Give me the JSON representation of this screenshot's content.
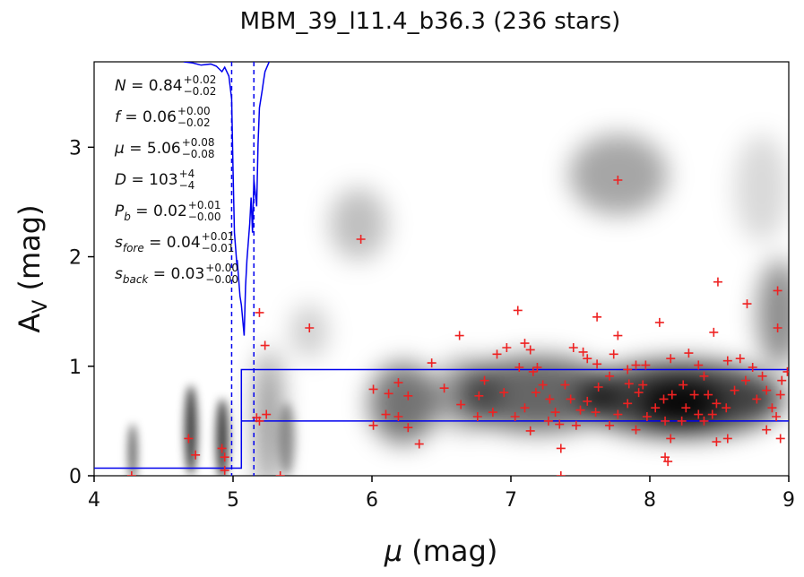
{
  "chart_data": {
    "type": "scatter",
    "title": "MBM_39_l11.4_b36.3 (236 stars)",
    "xlabel": [
      "μ",
      " (mag)"
    ],
    "ylabel": [
      "A",
      "V",
      " (mag)"
    ],
    "xlim": [
      4,
      9
    ],
    "ylim": [
      0,
      3.78
    ],
    "xticks": [
      4,
      5,
      6,
      7,
      8,
      9
    ],
    "yticks": [
      0,
      1,
      2,
      3
    ],
    "color": "#ee2222",
    "x": [
      7.77,
      5.92,
      5.55,
      5.19,
      5.23,
      8.49,
      8.92,
      8.7,
      7.05,
      7.62,
      8.07,
      8.92,
      6.63,
      7.77,
      8.46,
      6.43,
      6.01,
      6.12,
      6.19,
      6.26,
      6.52,
      6.64,
      6.81,
      6.77,
      6.76,
      6.87,
      6.95,
      6.9,
      6.97,
      7.1,
      7.14,
      7.06,
      7.16,
      7.19,
      7.23,
      7.28,
      7.18,
      7.1,
      7.03,
      7.14,
      7.27,
      7.35,
      7.36,
      7.36,
      7.47,
      7.5,
      7.43,
      7.39,
      7.32,
      7.55,
      7.63,
      7.71,
      7.62,
      7.55,
      7.45,
      7.52,
      7.74,
      7.84,
      7.9,
      7.97,
      7.85,
      7.92,
      7.95,
      7.84,
      7.77,
      7.71,
      7.61,
      7.9,
      7.98,
      8.04,
      8.11,
      8.15,
      8.11,
      8.13,
      8.16,
      8.24,
      8.15,
      8.28,
      8.35,
      8.39,
      8.32,
      8.42,
      8.48,
      8.45,
      8.39,
      8.48,
      8.56,
      8.55,
      8.61,
      8.69,
      8.74,
      8.81,
      8.84,
      8.77,
      8.88,
      8.94,
      8.95,
      8.99,
      8.84,
      8.94,
      8.91,
      8.56,
      8.65,
      8.35,
      8.26,
      8.23,
      8.1,
      6.01,
      6.1,
      6.19,
      6.26,
      6.34,
      5.24,
      5.19,
      5.17,
      5.34,
      4.68,
      4.73,
      4.92,
      4.94,
      4.94,
      4.27
    ],
    "y": [
      2.7,
      2.16,
      1.35,
      1.49,
      1.19,
      1.77,
      1.69,
      1.57,
      1.51,
      1.45,
      1.4,
      1.35,
      1.28,
      1.28,
      1.31,
      1.03,
      0.79,
      0.75,
      0.85,
      0.73,
      0.8,
      0.65,
      0.87,
      0.73,
      0.54,
      0.58,
      0.76,
      1.11,
      1.17,
      1.21,
      1.15,
      0.99,
      0.95,
      0.99,
      0.83,
      0.7,
      0.76,
      0.62,
      0.54,
      0.41,
      0.5,
      0.47,
      0.25,
      0.0,
      0.46,
      0.6,
      0.7,
      0.83,
      0.58,
      0.68,
      0.81,
      0.91,
      1.02,
      1.07,
      1.17,
      1.13,
      1.11,
      0.97,
      1.01,
      1.01,
      0.84,
      0.76,
      0.83,
      0.66,
      0.56,
      0.46,
      0.58,
      0.42,
      0.54,
      0.62,
      0.5,
      0.34,
      0.17,
      0.13,
      0.74,
      0.83,
      1.07,
      1.12,
      1.01,
      0.91,
      0.74,
      0.74,
      0.66,
      0.56,
      0.5,
      0.31,
      0.34,
      0.62,
      0.78,
      0.87,
      0.99,
      0.91,
      0.78,
      0.7,
      0.62,
      0.74,
      0.87,
      0.95,
      0.42,
      0.34,
      0.54,
      1.05,
      1.07,
      0.56,
      0.62,
      0.5,
      0.7,
      0.46,
      0.56,
      0.54,
      0.44,
      0.29,
      0.56,
      0.5,
      0.53,
      0.0,
      0.34,
      0.19,
      0.25,
      0.17,
      0.05,
      0.0
    ],
    "curve": {
      "color": "#0000ee",
      "x": [
        4.645,
        4.71,
        4.77,
        4.84,
        4.88,
        4.92,
        4.94,
        4.97,
        4.99,
        5.0,
        5.01,
        5.03,
        5.03,
        5.05,
        5.06,
        5.08,
        5.09,
        5.1,
        5.12,
        5.13,
        5.14,
        5.15,
        5.17,
        5.18,
        5.19,
        5.21,
        5.22,
        5.23,
        5.25,
        5.26
      ],
      "y": [
        3.78,
        3.77,
        3.75,
        3.76,
        3.74,
        3.69,
        3.73,
        3.65,
        3.44,
        2.79,
        2.22,
        1.89,
        1.97,
        1.64,
        1.56,
        1.28,
        1.73,
        1.97,
        2.3,
        2.54,
        2.22,
        2.71,
        2.46,
        3.03,
        3.36,
        3.52,
        3.61,
        3.69,
        3.75,
        3.78
      ]
    },
    "dashed_x": [
      4.99,
      5.15
    ],
    "step": {
      "x": [
        4,
        5.06,
        5.06,
        9
      ],
      "y": [
        0.07,
        0.07,
        0.97,
        0.97
      ]
    },
    "lower": {
      "x": [
        5.06,
        9
      ],
      "y": [
        0.5,
        0.5
      ]
    },
    "annotations": [
      {
        "sym": "N",
        "eq": " = 0.84",
        "sup": "+0.02",
        "sub": "−0.02"
      },
      {
        "sym": "f",
        "eq": " = 0.06",
        "sup": "+0.00",
        "sub": "−0.02"
      },
      {
        "sym": "μ",
        "eq": " = 5.06",
        "sup": "+0.08",
        "sub": "−0.08"
      },
      {
        "sym": "D",
        "eq": " = 103",
        "sup": "+4",
        "sub": "−4"
      },
      {
        "sym": "P",
        "sym_sub": "b",
        "eq": " = 0.02",
        "sup": "+0.01",
        "sub": "−0.00"
      },
      {
        "sym": "s",
        "sym_sub": "fore",
        "eq": " = 0.04",
        "sup": "+0.01",
        "sub": "−0.01"
      },
      {
        "sym": "s",
        "sym_sub": "back",
        "eq": " = 0.03",
        "sup": "+0.00",
        "sub": "−0.00"
      }
    ]
  }
}
